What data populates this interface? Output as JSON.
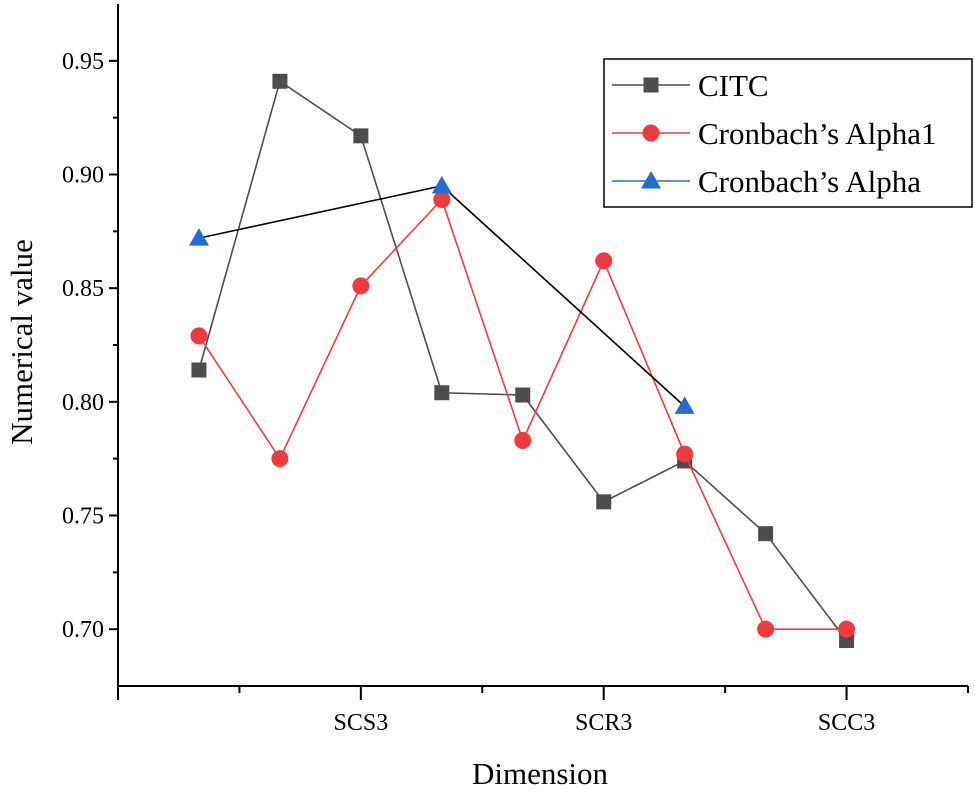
{
  "chart_data": {
    "type": "line",
    "title": "",
    "xlabel": "Dimension",
    "ylabel": "Numerical value",
    "x_positions": [
      1,
      2,
      3,
      4,
      5,
      6,
      7,
      8,
      9,
      10
    ],
    "x_range": [
      0,
      10.5
    ],
    "ylim": [
      0.675,
      0.975
    ],
    "y_ticks": [
      0.7,
      0.75,
      0.8,
      0.85,
      0.9,
      0.95
    ],
    "y_tick_labels": [
      "0.70",
      "0.75",
      "0.80",
      "0.85",
      "0.90",
      "0.95"
    ],
    "x_ticks": [
      {
        "x": 3,
        "label": "SCS3"
      },
      {
        "x": 6,
        "label": "SCR3"
      },
      {
        "x": 9,
        "label": "SCC3"
      }
    ],
    "grid": false,
    "legend_position": "top-right",
    "series": [
      {
        "name": "CITC",
        "color": "#4d4d4d",
        "line_color": "#4d4d4d",
        "marker": "square",
        "x": [
          1,
          2,
          3,
          4,
          5,
          6,
          7,
          8,
          9
        ],
        "values": [
          0.814,
          0.941,
          0.917,
          0.804,
          0.803,
          0.756,
          0.774,
          0.742,
          0.695
        ]
      },
      {
        "name": "Cronbach’s Alpha1",
        "color": "#ef3b3b",
        "line_color": "#ef3b3b",
        "marker": "circle",
        "x": [
          1,
          2,
          3,
          4,
          5,
          6,
          7,
          8,
          9
        ],
        "values": [
          0.829,
          0.775,
          0.851,
          0.889,
          0.783,
          0.862,
          0.777,
          0.7,
          0.7
        ]
      },
      {
        "name": "Cronbach’s Alpha",
        "color": "#1f6fd6",
        "line_color": "#000000",
        "marker": "triangle",
        "x": [
          1,
          4,
          7
        ],
        "values": [
          0.872,
          0.895,
          0.798
        ]
      }
    ]
  }
}
